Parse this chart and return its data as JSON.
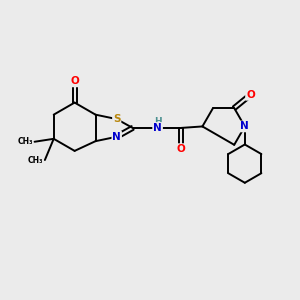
{
  "background_color": "#ebebeb",
  "atom_colors": {
    "C": "#000000",
    "N": "#0000cd",
    "O": "#ff0000",
    "S": "#b8860b",
    "H": "#4a9090"
  },
  "bond_color": "#000000",
  "bond_width": 1.4,
  "figsize": [
    3.0,
    3.0
  ],
  "dpi": 100
}
